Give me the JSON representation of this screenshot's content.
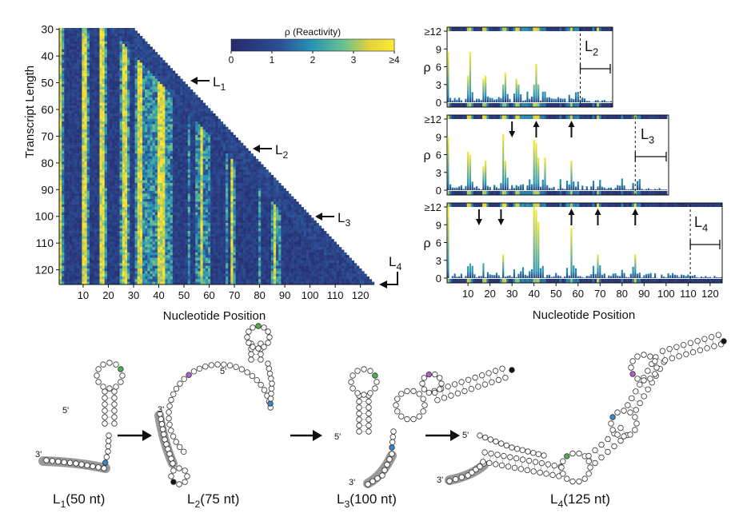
{
  "heatmap": {
    "ylabel": "Transcript Length",
    "xlabel": "Nucleotide Position",
    "y_ticks": [
      "30",
      "40",
      "50",
      "60",
      "70",
      "80",
      "90",
      "100",
      "110",
      "120"
    ],
    "x_ticks": [
      "10",
      "20",
      "30",
      "40",
      "50",
      "60",
      "70",
      "80",
      "90",
      "100",
      "110",
      "120"
    ],
    "colorbar_title": "ρ (Reactivity)",
    "colorbar_ticks": [
      "0",
      "1",
      "2",
      "3",
      "≥4"
    ],
    "arrow_labels": [
      {
        "base": "L",
        "sub": "1"
      },
      {
        "base": "L",
        "sub": "2"
      },
      {
        "base": "L",
        "sub": "3"
      },
      {
        "base": "L",
        "sub": "4"
      }
    ]
  },
  "bar_panels": {
    "ylabel": "ρ",
    "y_ticks": [
      "0",
      "3",
      "6",
      "9",
      "≥12"
    ],
    "x_ticks": [
      "10",
      "20",
      "30",
      "40",
      "50",
      "60",
      "70",
      "80",
      "90",
      "100",
      "110",
      "120"
    ],
    "xlabel": "Nucleotide Position",
    "panel_labels": [
      {
        "base": "L",
        "sub": "2"
      },
      {
        "base": "L",
        "sub": "3"
      },
      {
        "base": "L",
        "sub": "4"
      }
    ]
  },
  "structures": [
    {
      "base": "L",
      "sub": "1",
      "suffix": "(50 nt)",
      "five": "5'",
      "three": "3'"
    },
    {
      "base": "L",
      "sub": "2",
      "suffix": "(75 nt)",
      "five": "5'",
      "three": "3'"
    },
    {
      "base": "L",
      "sub": "3",
      "suffix": "(100 nt)",
      "five": "5'",
      "three": "3'"
    },
    {
      "base": "L",
      "sub": "4",
      "suffix": "(125 nt)",
      "five": "5'",
      "three": "3'"
    }
  ],
  "colors": {
    "low": "#2a2f7a",
    "mid": "#2a9bb5",
    "high": "#f4e62f",
    "green": "#4caf50",
    "blue": "#3a86c8",
    "purple": "#b061c6",
    "black": "#111111",
    "grey": "#9a9a9a"
  },
  "chart_data": [
    {
      "type": "heatmap",
      "title": "",
      "xlabel": "Nucleotide Position",
      "ylabel": "Transcript Length",
      "x_range": [
        1,
        125
      ],
      "y_range": [
        30,
        125
      ],
      "color_scale": {
        "label": "ρ (Reactivity)",
        "min": 0,
        "max": 4
      },
      "high_reactivity_columns": [
        1,
        10,
        11,
        17,
        18,
        26,
        27,
        32,
        33,
        40,
        41,
        42,
        57,
        69,
        86
      ]
    },
    {
      "type": "bar",
      "panel": "L2",
      "ylabel": "ρ",
      "ylim": [
        0,
        12
      ],
      "x_range": [
        1,
        75
      ],
      "major_peaks": {
        "x": [
          1,
          10,
          11,
          17,
          18,
          26,
          27,
          32,
          33,
          40,
          41,
          42
        ],
        "y": [
          8.5,
          4.5,
          8.5,
          4,
          4.5,
          3,
          5,
          4,
          3,
          3,
          6.5,
          3
        ]
      }
    },
    {
      "type": "bar",
      "panel": "L3",
      "ylabel": "ρ",
      "ylim": [
        0,
        12
      ],
      "x_range": [
        1,
        100
      ],
      "major_peaks": {
        "x": [
          1,
          10,
          11,
          17,
          18,
          26,
          27,
          40,
          41,
          42,
          45,
          57
        ],
        "y": [
          9,
          6.5,
          6,
          4,
          5,
          9.5,
          5,
          8.5,
          8,
          5.5,
          5.5,
          5
        ]
      }
    },
    {
      "type": "bar",
      "panel": "L4",
      "ylabel": "ρ",
      "ylim": [
        0,
        12
      ],
      "x_range": [
        1,
        125
      ],
      "major_peaks": {
        "x": [
          1,
          10,
          11,
          17,
          26,
          40,
          41,
          42,
          57,
          69,
          86
        ],
        "y": [
          12,
          2,
          2.5,
          2.5,
          4,
          12,
          11.5,
          9.5,
          8.5,
          4,
          4
        ]
      }
    }
  ]
}
